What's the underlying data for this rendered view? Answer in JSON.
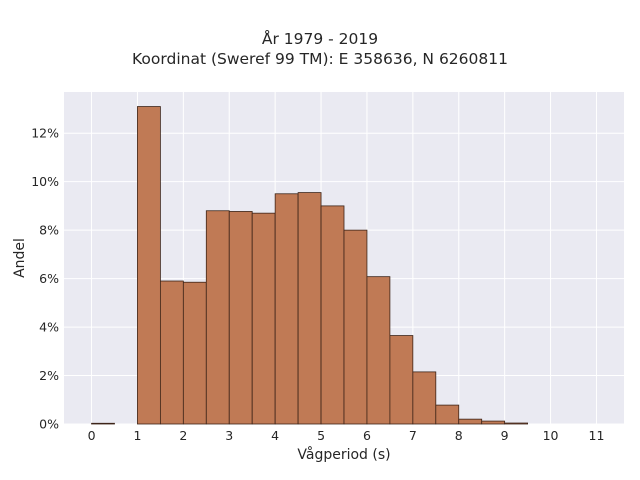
{
  "chart_data": {
    "type": "bar",
    "title": "År 1979 - 2019",
    "subtitle": "Koordinat (Sweref 99 TM): E 358636, N 6260811",
    "xlabel": "Vågperiod (s)",
    "ylabel": "Andel",
    "xlim": [
      -0.6,
      11.6
    ],
    "ylim": [
      0,
      13.7
    ],
    "x_ticks": [
      0,
      1,
      2,
      3,
      4,
      5,
      6,
      7,
      8,
      9,
      10,
      11
    ],
    "y_ticks": [
      0,
      2,
      4,
      6,
      8,
      10,
      12
    ],
    "y_tick_labels": [
      "0%",
      "2%",
      "4%",
      "6%",
      "8%",
      "10%",
      "12%"
    ],
    "bin_width": 0.5,
    "bins": [
      {
        "x0": 0.0,
        "value": 0.03
      },
      {
        "x0": 1.0,
        "value": 13.1
      },
      {
        "x0": 1.5,
        "value": 5.9
      },
      {
        "x0": 2.0,
        "value": 5.85
      },
      {
        "x0": 2.5,
        "value": 8.8
      },
      {
        "x0": 3.0,
        "value": 8.77
      },
      {
        "x0": 3.5,
        "value": 8.7
      },
      {
        "x0": 4.0,
        "value": 9.5
      },
      {
        "x0": 4.5,
        "value": 9.55
      },
      {
        "x0": 5.0,
        "value": 9.0
      },
      {
        "x0": 5.5,
        "value": 8.0
      },
      {
        "x0": 6.0,
        "value": 6.08
      },
      {
        "x0": 6.5,
        "value": 3.65
      },
      {
        "x0": 7.0,
        "value": 2.15
      },
      {
        "x0": 7.5,
        "value": 0.78
      },
      {
        "x0": 8.0,
        "value": 0.2
      },
      {
        "x0": 8.5,
        "value": 0.12
      },
      {
        "x0": 9.0,
        "value": 0.04
      }
    ],
    "grid": true,
    "colors": {
      "background": "#eaeaf2",
      "grid": "#ffffff",
      "bar_fill": "#c07a55",
      "bar_edge": "#3d2418"
    }
  }
}
